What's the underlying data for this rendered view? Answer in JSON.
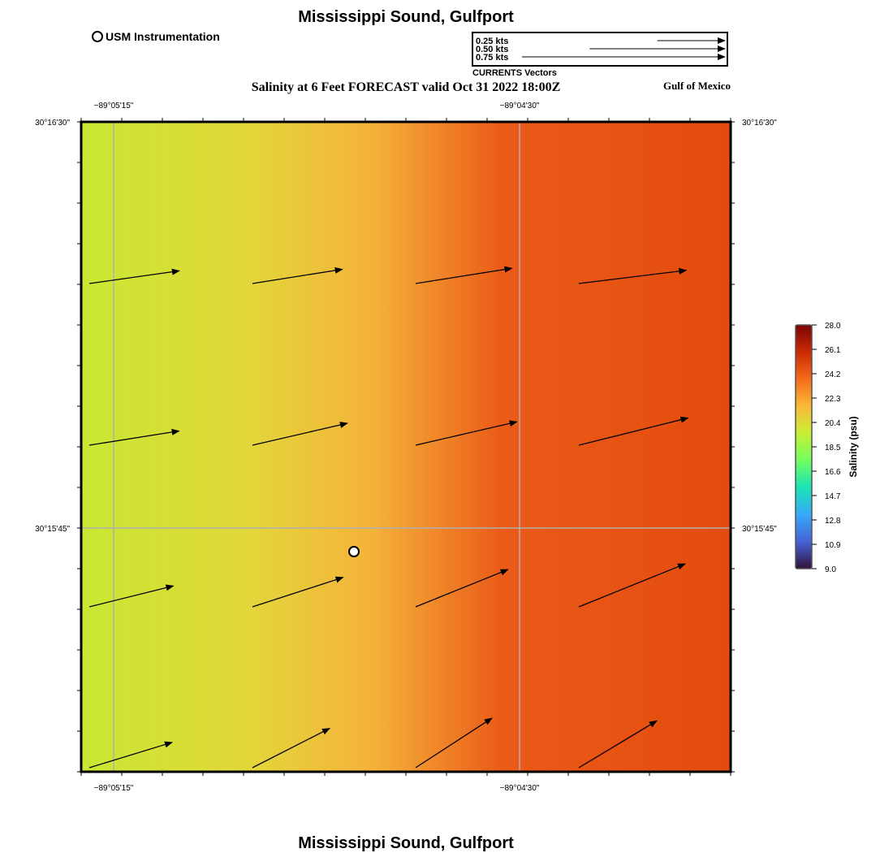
{
  "header": {
    "title": "Mississippi Sound, Gulfport",
    "subtitle": "Salinity at 6 Feet FORECAST valid Oct 31 2022 18:00Z",
    "region_label": "Gulf of Mexico",
    "instrument_label": "USM Instrumentation"
  },
  "footer": {
    "title": "Mississippi Sound, Gulfport"
  },
  "vector_legend": {
    "caption": "CURRENTS Vectors",
    "entries": [
      {
        "label": "0.25 kts",
        "speed": 0.25
      },
      {
        "label": "0.50 kts",
        "speed": 0.5
      },
      {
        "label": "0.75 kts",
        "speed": 0.75
      }
    ]
  },
  "map": {
    "lon_ticks": [
      "−89°05'15\"",
      "−89°04'30\""
    ],
    "lat_ticks": [
      "30°16'30\"",
      "30°15'45\""
    ],
    "station": {
      "name": "USM Instrumentation",
      "lon_frac": 0.42,
      "lat_frac": 0.3
    }
  },
  "chart_data": {
    "type": "heatmap",
    "variable": "Salinity (psu)",
    "colorbar": {
      "label": "Salinity (psu)",
      "ticks": [
        "28.0",
        "26.1",
        "24.2",
        "22.3",
        "20.4",
        "18.5",
        "16.6",
        "14.7",
        "12.8",
        "10.9",
        "9.0"
      ],
      "range": [
        9.0,
        28.0
      ],
      "colors": [
        "#30123b",
        "#4662d7",
        "#36aaf9",
        "#1ae4b6",
        "#72fe5e",
        "#c8ef34",
        "#faba39",
        "#f66b19",
        "#cb2a04",
        "#7a0403"
      ]
    },
    "salinity_gradient_stops": [
      {
        "pos": 0.0,
        "color": "#c8e832"
      },
      {
        "pos": 0.25,
        "color": "#e2d83a"
      },
      {
        "pos": 0.45,
        "color": "#f5b23a"
      },
      {
        "pos": 0.65,
        "color": "#ea5a18"
      },
      {
        "pos": 1.0,
        "color": "#e34c0e"
      }
    ],
    "current_vectors": [
      {
        "row": 0,
        "col": 0,
        "speed": 0.42,
        "dir_deg": 8
      },
      {
        "row": 0,
        "col": 1,
        "speed": 0.42,
        "dir_deg": 9
      },
      {
        "row": 0,
        "col": 2,
        "speed": 0.45,
        "dir_deg": 9
      },
      {
        "row": 0,
        "col": 3,
        "speed": 0.5,
        "dir_deg": 7
      },
      {
        "row": 1,
        "col": 0,
        "speed": 0.42,
        "dir_deg": 9
      },
      {
        "row": 1,
        "col": 1,
        "speed": 0.45,
        "dir_deg": 13
      },
      {
        "row": 1,
        "col": 2,
        "speed": 0.48,
        "dir_deg": 13
      },
      {
        "row": 1,
        "col": 3,
        "speed": 0.52,
        "dir_deg": 14
      },
      {
        "row": 2,
        "col": 0,
        "speed": 0.4,
        "dir_deg": 14
      },
      {
        "row": 2,
        "col": 1,
        "speed": 0.44,
        "dir_deg": 18
      },
      {
        "row": 2,
        "col": 2,
        "speed": 0.46,
        "dir_deg": 22
      },
      {
        "row": 2,
        "col": 3,
        "speed": 0.53,
        "dir_deg": 22
      },
      {
        "row": 3,
        "col": 0,
        "speed": 0.4,
        "dir_deg": 17
      },
      {
        "row": 3,
        "col": 1,
        "speed": 0.4,
        "dir_deg": 27
      },
      {
        "row": 3,
        "col": 2,
        "speed": 0.42,
        "dir_deg": 33
      },
      {
        "row": 3,
        "col": 3,
        "speed": 0.42,
        "dir_deg": 31
      }
    ]
  }
}
